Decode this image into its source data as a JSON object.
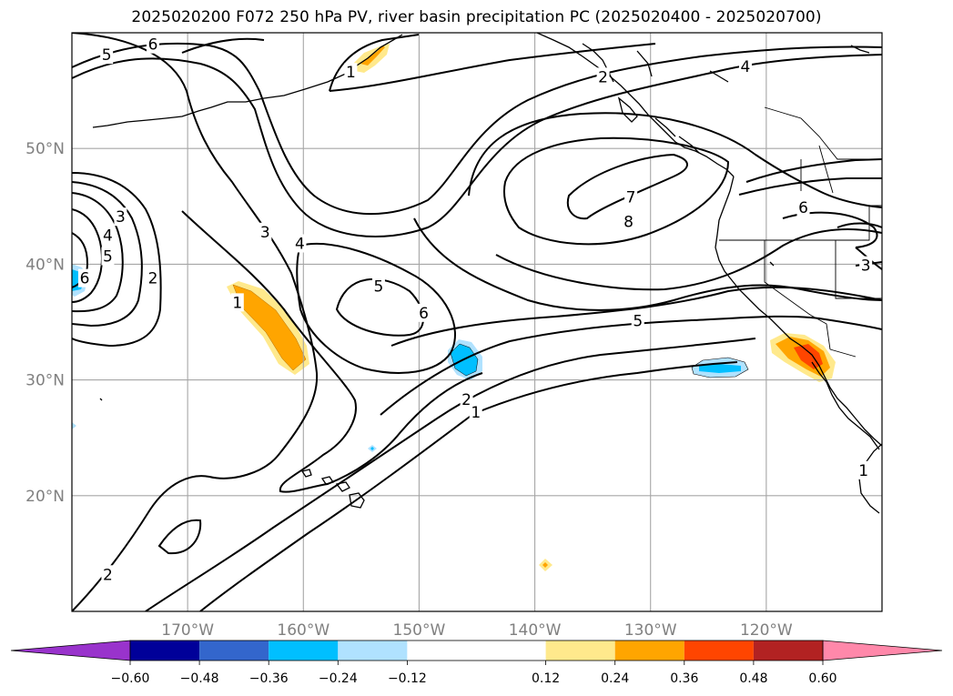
{
  "title": "2025020200 F072 250 hPa PV, river basin precipitation PC (2025020400 - 2025020700)",
  "chart_data": {
    "type": "map",
    "title": "2025020200 F072 250 hPa PV, river basin precipitation PC (2025020400 - 2025020700)",
    "lon_range": [
      -180,
      -110
    ],
    "lat_range": [
      10,
      60
    ],
    "grid": true,
    "lon_ticks": [
      "170°W",
      "160°W",
      "150°W",
      "140°W",
      "130°W",
      "120°W"
    ],
    "lon_tick_values": [
      -170,
      -160,
      -150,
      -140,
      -130,
      -120
    ],
    "lat_ticks": [
      "50°N",
      "40°N",
      "30°N",
      "20°N"
    ],
    "lat_tick_values": [
      50,
      40,
      30,
      20
    ],
    "pv_contour_labels": [
      {
        "text": "5",
        "lon": -177,
        "lat": 58.1
      },
      {
        "text": "6",
        "lon": -173,
        "lat": 59
      },
      {
        "text": "1",
        "lon": -155.9,
        "lat": 56.6
      },
      {
        "text": "2",
        "lon": -134.1,
        "lat": 56.2
      },
      {
        "text": "4",
        "lon": -121.8,
        "lat": 57.1
      },
      {
        "text": "7",
        "lon": -131.7,
        "lat": 45.8
      },
      {
        "text": "8",
        "lon": -131.9,
        "lat": 43.7
      },
      {
        "text": "6",
        "lon": -116.8,
        "lat": 44.9
      },
      {
        "text": "3",
        "lon": -175.8,
        "lat": 44.1
      },
      {
        "text": "4",
        "lon": -176.9,
        "lat": 42.5
      },
      {
        "text": "5",
        "lon": -176.9,
        "lat": 40.7
      },
      {
        "text": "6",
        "lon": -178.9,
        "lat": 38.8
      },
      {
        "text": "2",
        "lon": -173,
        "lat": 38.8
      },
      {
        "text": "3",
        "lon": -163.3,
        "lat": 42.8
      },
      {
        "text": "4",
        "lon": -160.3,
        "lat": 41.8
      },
      {
        "text": "1",
        "lon": -165.7,
        "lat": 36.7
      },
      {
        "text": "5",
        "lon": -153.5,
        "lat": 38.1
      },
      {
        "text": "6",
        "lon": -149.6,
        "lat": 35.8
      },
      {
        "text": "5",
        "lon": -131.1,
        "lat": 35.1
      },
      {
        "text": "3",
        "lon": -111.4,
        "lat": 39.9
      },
      {
        "text": "2",
        "lon": -145.9,
        "lat": 28.3
      },
      {
        "text": "1",
        "lon": -145.1,
        "lat": 27.2
      },
      {
        "text": "2",
        "lon": -176.9,
        "lat": 13.2
      },
      {
        "text": "1",
        "lon": -111.6,
        "lat": 22.2
      }
    ],
    "precip_anomaly_regions": [
      {
        "lon": -162.6,
        "lat": 34.6,
        "value": 0.3
      },
      {
        "lon": -153.9,
        "lat": 57.6,
        "value": 0.15
      },
      {
        "lon": -117.2,
        "lat": 31.6,
        "value": 0.45
      },
      {
        "lon": -139,
        "lat": 14,
        "value": 0.3
      },
      {
        "lon": -145.8,
        "lat": 31.7,
        "value": -0.3
      },
      {
        "lon": -124.6,
        "lat": 31,
        "value": -0.3
      },
      {
        "lon": -179.6,
        "lat": 38.5,
        "value": -0.3
      },
      {
        "lon": -153.7,
        "lat": 24.1,
        "value": -0.3
      }
    ],
    "colorbar": {
      "tick_labels": [
        "−0.60",
        "−0.48",
        "−0.36",
        "−0.24",
        "−0.12",
        "0.12",
        "0.24",
        "0.36",
        "0.48",
        "0.60"
      ],
      "tick_values": [
        -0.6,
        -0.48,
        -0.36,
        -0.24,
        -0.12,
        0.12,
        0.24,
        0.36,
        0.48,
        0.6
      ],
      "extend": "both",
      "colors": [
        "#9933cc",
        "#000099",
        "#3366cc",
        "#00bfff",
        "#b0e2ff",
        "#ffffff",
        "#ffe98c",
        "#ffa500",
        "#ff4500",
        "#b22222",
        "#ff88aa"
      ]
    }
  }
}
